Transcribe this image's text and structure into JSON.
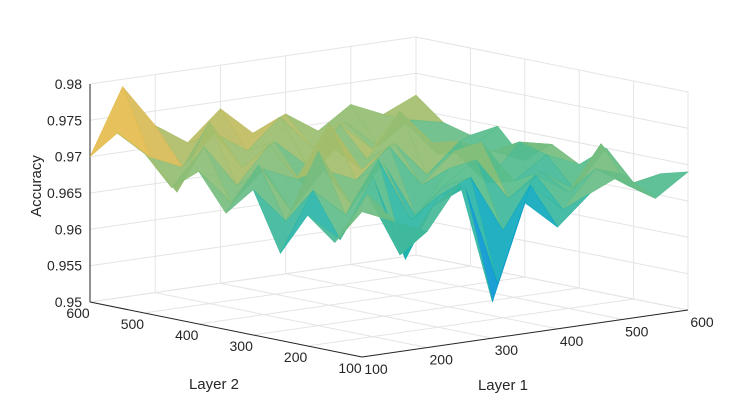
{
  "chart_data": {
    "type": "surface3d",
    "title": "",
    "xlabel": "Layer 1",
    "ylabel": "Layer 2",
    "zlabel": "Accuracy",
    "xlim": [
      100,
      600
    ],
    "ylim": [
      100,
      600
    ],
    "zlim": [
      0.95,
      0.98
    ],
    "xticks": [
      "100",
      "200",
      "300",
      "400",
      "500",
      "600"
    ],
    "yticks": [
      "100",
      "200",
      "300",
      "400",
      "500",
      "600"
    ],
    "zticks": [
      "0.95",
      "0.955",
      "0.96",
      "0.965",
      "0.97",
      "0.975",
      "0.98"
    ],
    "grid": true,
    "colormap": "parula",
    "layer1_values": [
      100,
      150,
      200,
      250,
      300,
      350,
      400,
      450,
      500,
      550,
      600
    ],
    "layer2_values": [
      100,
      150,
      200,
      250,
      300,
      350,
      400,
      450,
      500,
      550,
      600
    ],
    "accuracy": [
      [
        0.97,
        0.968,
        0.966,
        0.972,
        0.955,
        0.968,
        0.964,
        0.968,
        0.97,
        0.966,
        0.969
      ],
      [
        0.965,
        0.971,
        0.962,
        0.968,
        0.97,
        0.956,
        0.969,
        0.965,
        0.97,
        0.967,
        0.968
      ],
      [
        0.968,
        0.964,
        0.972,
        0.96,
        0.968,
        0.97,
        0.962,
        0.969,
        0.966,
        0.972,
        0.966
      ],
      [
        0.962,
        0.97,
        0.966,
        0.973,
        0.964,
        0.968,
        0.971,
        0.965,
        0.968,
        0.965,
        0.97
      ],
      [
        0.97,
        0.965,
        0.974,
        0.966,
        0.971,
        0.963,
        0.969,
        0.972,
        0.966,
        0.969,
        0.967
      ],
      [
        0.966,
        0.972,
        0.965,
        0.97,
        0.968,
        0.972,
        0.966,
        0.97,
        0.965,
        0.97,
        0.969
      ],
      [
        0.971,
        0.966,
        0.97,
        0.968,
        0.975,
        0.968,
        0.971,
        0.966,
        0.97,
        0.968,
        0.966
      ],
      [
        0.968,
        0.973,
        0.967,
        0.972,
        0.966,
        0.97,
        0.968,
        0.974,
        0.969,
        0.967,
        0.97
      ],
      [
        0.972,
        0.966,
        0.975,
        0.968,
        0.971,
        0.967,
        0.972,
        0.968,
        0.971,
        0.966,
        0.968
      ],
      [
        0.974,
        0.97,
        0.968,
        0.972,
        0.969,
        0.973,
        0.968,
        0.971,
        0.967,
        0.97,
        0.969
      ],
      [
        0.97,
        0.979,
        0.973,
        0.97,
        0.974,
        0.97,
        0.972,
        0.969,
        0.972,
        0.97,
        0.972
      ]
    ]
  }
}
